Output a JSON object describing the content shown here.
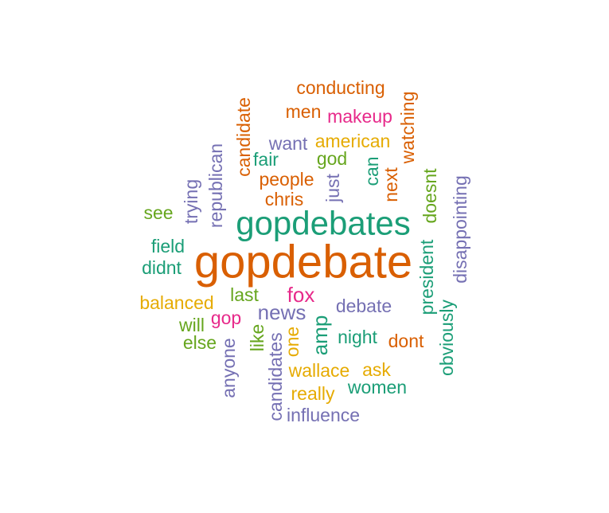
{
  "colors": {
    "orange": "#d95f02",
    "green": "#1b9e77",
    "purple": "#7570b3",
    "magenta": "#e7298a",
    "lime": "#66a61e",
    "gold": "#e6ab02"
  },
  "words": [
    {
      "text": "gopdebate",
      "color": "orange"
    },
    {
      "text": "gopdebates",
      "color": "green"
    },
    {
      "text": "conducting",
      "color": "orange"
    },
    {
      "text": "men",
      "color": "orange"
    },
    {
      "text": "makeup",
      "color": "magenta"
    },
    {
      "text": "watching",
      "color": "orange"
    },
    {
      "text": "candidate",
      "color": "orange"
    },
    {
      "text": "want",
      "color": "purple"
    },
    {
      "text": "american",
      "color": "gold"
    },
    {
      "text": "fair",
      "color": "green"
    },
    {
      "text": "god",
      "color": "lime"
    },
    {
      "text": "republican",
      "color": "purple"
    },
    {
      "text": "people",
      "color": "orange"
    },
    {
      "text": "chris",
      "color": "orange"
    },
    {
      "text": "just",
      "color": "purple"
    },
    {
      "text": "can",
      "color": "green"
    },
    {
      "text": "next",
      "color": "orange"
    },
    {
      "text": "doesnt",
      "color": "lime"
    },
    {
      "text": "trying",
      "color": "purple"
    },
    {
      "text": "disappointing",
      "color": "purple"
    },
    {
      "text": "see",
      "color": "lime"
    },
    {
      "text": "field",
      "color": "green"
    },
    {
      "text": "didnt",
      "color": "green"
    },
    {
      "text": "president",
      "color": "green"
    },
    {
      "text": "last",
      "color": "lime"
    },
    {
      "text": "fox",
      "color": "magenta"
    },
    {
      "text": "balanced",
      "color": "gold"
    },
    {
      "text": "news",
      "color": "purple"
    },
    {
      "text": "debate",
      "color": "purple"
    },
    {
      "text": "obviously",
      "color": "green"
    },
    {
      "text": "gop",
      "color": "magenta"
    },
    {
      "text": "will",
      "color": "lime"
    },
    {
      "text": "like",
      "color": "lime"
    },
    {
      "text": "one",
      "color": "gold"
    },
    {
      "text": "amp",
      "color": "green"
    },
    {
      "text": "night",
      "color": "green"
    },
    {
      "text": "else",
      "color": "lime"
    },
    {
      "text": "dont",
      "color": "orange"
    },
    {
      "text": "anyone",
      "color": "purple"
    },
    {
      "text": "candidates",
      "color": "purple"
    },
    {
      "text": "wallace",
      "color": "gold"
    },
    {
      "text": "ask",
      "color": "gold"
    },
    {
      "text": "women",
      "color": "green"
    },
    {
      "text": "really",
      "color": "gold"
    },
    {
      "text": "influence",
      "color": "purple"
    }
  ]
}
